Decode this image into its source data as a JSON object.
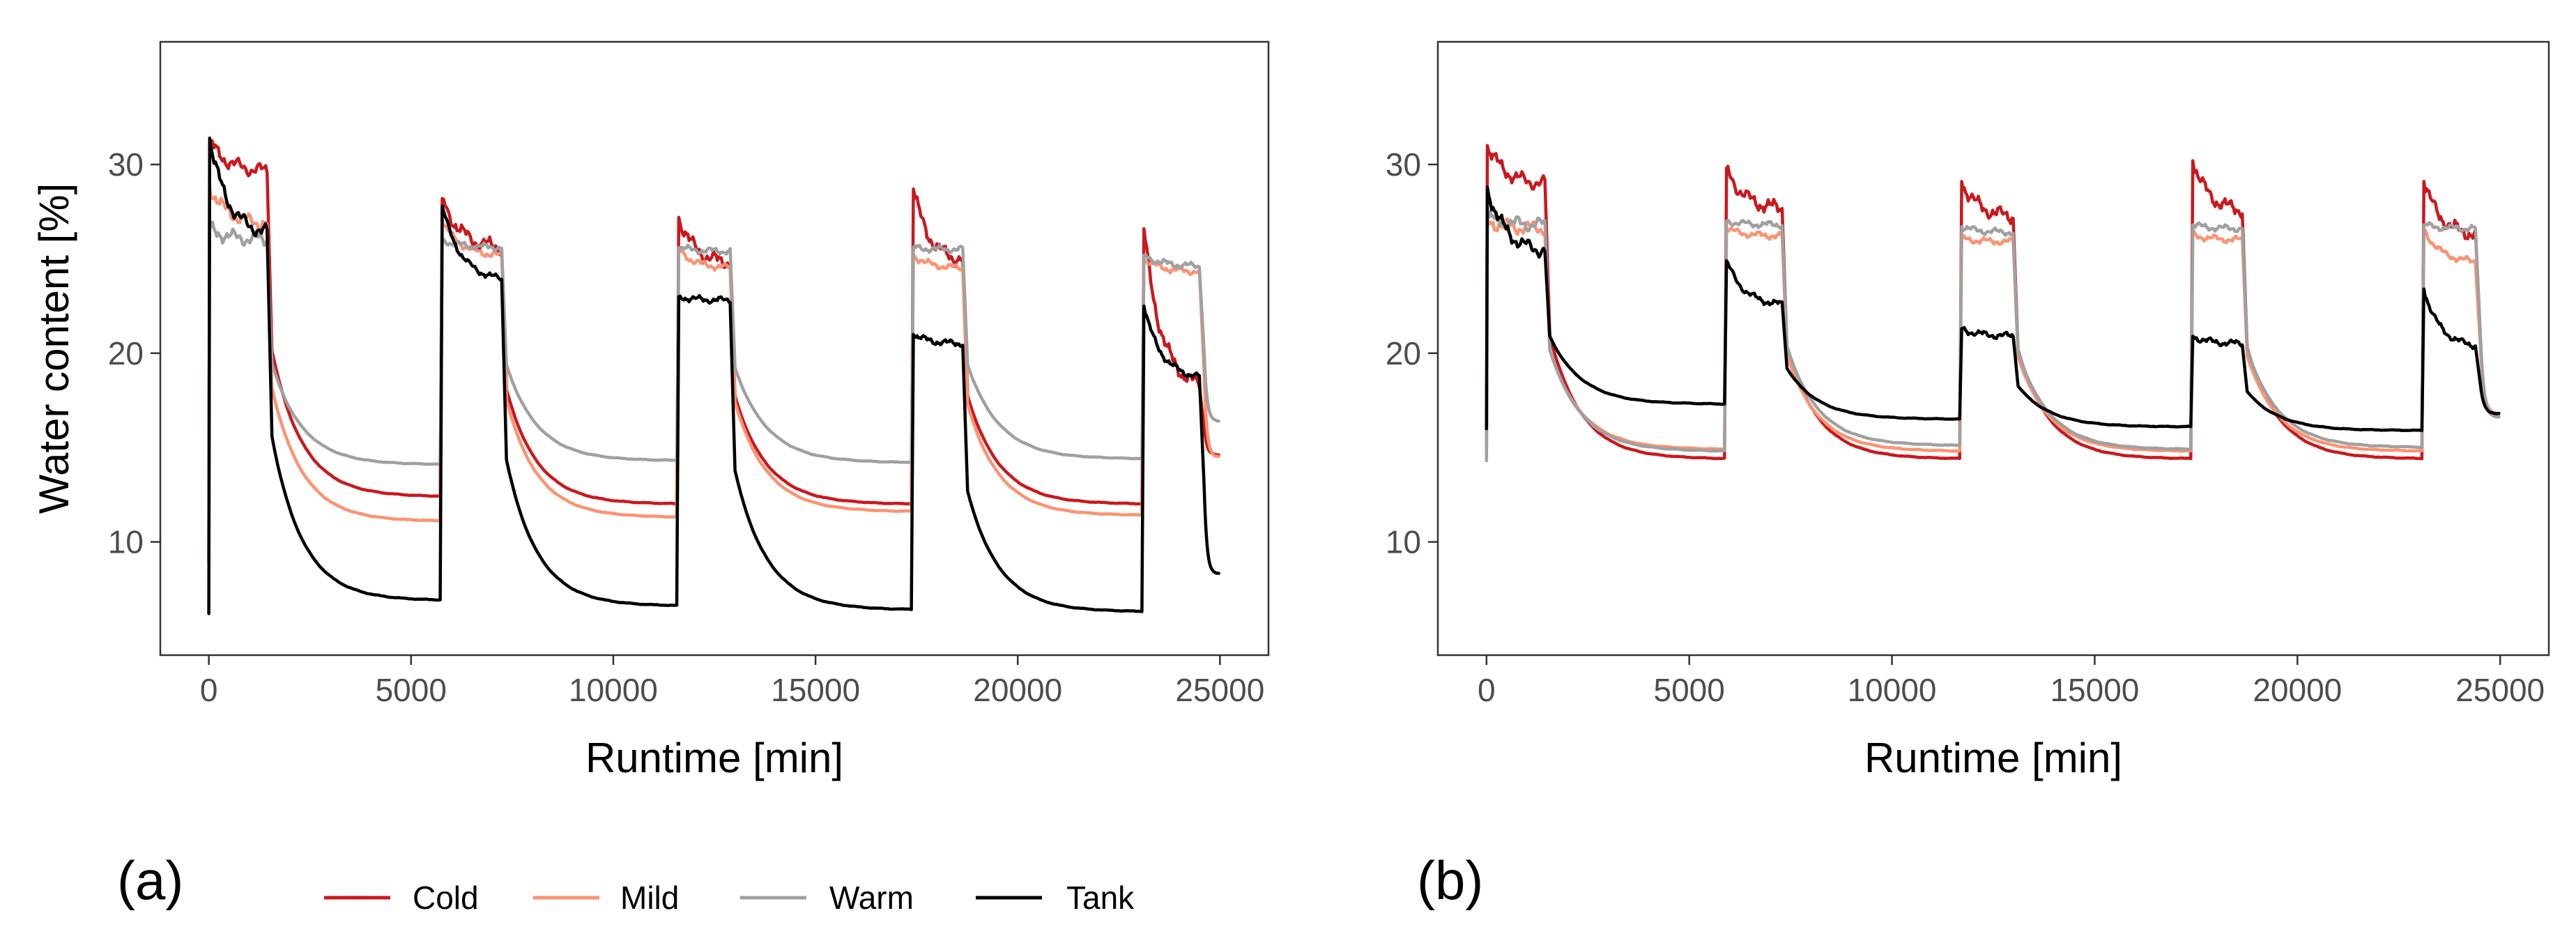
{
  "figure": {
    "legend": [
      {
        "name": "Cold",
        "color": "#cb181d"
      },
      {
        "name": "Mild",
        "color": "#fc9272"
      },
      {
        "name": "Warm",
        "color": "#a0a0a0"
      },
      {
        "name": "Tank",
        "color": "#000000"
      }
    ]
  },
  "chart_data": [
    {
      "type": "line",
      "panel": "(a)",
      "title": "",
      "xlabel": "Runtime [min]",
      "ylabel": "Water content [%]",
      "xlim": [
        -1200,
        26200
      ],
      "ylim": [
        4,
        36.5
      ],
      "xticks": [
        0,
        5000,
        10000,
        15000,
        20000,
        25000
      ],
      "yticks": [
        10,
        20,
        30
      ],
      "grid": false,
      "cycles": [
        {
          "start": 0,
          "end": 1500,
          "next": 5750
        },
        {
          "start": 5750,
          "end": 7300,
          "next": 11600
        },
        {
          "start": 11600,
          "end": 12950,
          "next": 17400
        },
        {
          "start": 17400,
          "end": 18700,
          "next": 23100
        },
        {
          "start": 23100,
          "end": 24550,
          "next": 25000
        }
      ],
      "series": [
        {
          "name": "Cold",
          "color": "#cb181d",
          "peak": [
            31.2,
            28.2,
            27.2,
            28.7,
            26.6
          ],
          "plateau": [
            29.6,
            25.5,
            24.7,
            24.8,
            18.0
          ],
          "trough": [
            12.4,
            12.0,
            12.0,
            12.0,
            14.6
          ],
          "base": 9.0
        },
        {
          "name": "Mild",
          "color": "#fc9272",
          "peak": [
            28.8,
            27.0,
            25.5,
            25.2,
            25.0
          ],
          "plateau": [
            26.8,
            25.1,
            24.5,
            24.5,
            24.3
          ],
          "trough": [
            11.1,
            11.3,
            11.6,
            11.4,
            14.5
          ],
          "base": 9.0
        },
        {
          "name": "Warm",
          "color": "#a0a0a0",
          "peak": [
            26.6,
            26.0,
            25.6,
            25.6,
            25.2
          ],
          "plateau": [
            26.0,
            25.6,
            25.4,
            25.5,
            24.6
          ],
          "trough": [
            14.1,
            14.3,
            14.2,
            14.4,
            16.4
          ],
          "base": 9.0
        },
        {
          "name": "Tank",
          "color": "#000000",
          "peak": [
            31.4,
            27.8,
            23.0,
            21.0,
            22.5
          ],
          "plateau": [
            26.2,
            23.8,
            22.8,
            20.5,
            18.6
          ],
          "trough": [
            6.9,
            6.6,
            6.4,
            6.3,
            8.3
          ],
          "base": 6.2
        }
      ]
    },
    {
      "type": "line",
      "panel": "(b)",
      "title": "",
      "xlabel": "Runtime [min]",
      "ylabel": "",
      "xlim": [
        -1200,
        26200
      ],
      "ylim": [
        4,
        36.5
      ],
      "xticks": [
        0,
        5000,
        10000,
        15000,
        20000,
        25000
      ],
      "yticks": [
        10,
        20,
        30
      ],
      "grid": false,
      "cycles": [
        {
          "start": 0,
          "end": 1500,
          "next": 5900
        },
        {
          "start": 5900,
          "end": 7350,
          "next": 11700
        },
        {
          "start": 11700,
          "end": 13050,
          "next": 17400
        },
        {
          "start": 17400,
          "end": 18700,
          "next": 23100
        },
        {
          "start": 23100,
          "end": 24450,
          "next": 25000
        }
      ],
      "series": [
        {
          "name": "Cold",
          "color": "#cb181d",
          "peak": [
            31.0,
            29.8,
            29.1,
            30.2,
            29.1
          ],
          "plateau": [
            28.9,
            27.6,
            27.2,
            27.5,
            26.2
          ],
          "trough": [
            14.4,
            14.4,
            14.4,
            14.4,
            16.6
          ],
          "base": 15.0
        },
        {
          "name": "Mild",
          "color": "#fc9272",
          "peak": [
            27.0,
            26.6,
            26.1,
            26.3,
            26.6
          ],
          "plateau": [
            26.6,
            26.2,
            25.9,
            26.0,
            24.8
          ],
          "trough": [
            14.9,
            14.8,
            14.8,
            14.8,
            16.8
          ],
          "base": 15.0
        },
        {
          "name": "Warm",
          "color": "#a0a0a0",
          "peak": [
            27.2,
            27.0,
            26.7,
            26.8,
            26.8
          ],
          "plateau": [
            26.8,
            26.8,
            26.4,
            26.6,
            26.6
          ],
          "trough": [
            14.8,
            15.1,
            14.9,
            15.0,
            16.6
          ],
          "base": 14.3
        },
        {
          "name": "Tank",
          "color": "#000000",
          "peak": [
            28.8,
            24.9,
            21.3,
            20.9,
            23.4
          ],
          "plateau": [
            25.3,
            22.5,
            20.9,
            20.5,
            20.3
          ],
          "trough": [
            17.3,
            16.5,
            16.1,
            15.9,
            16.8
          ],
          "base": 16.0
        }
      ]
    }
  ]
}
